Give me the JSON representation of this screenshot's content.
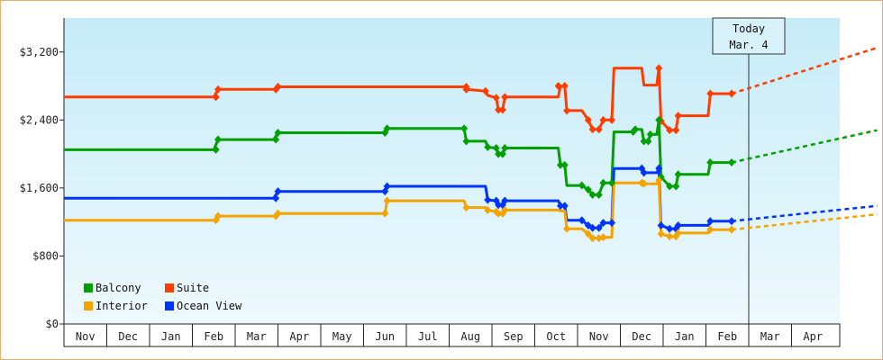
{
  "chart_data": {
    "type": "line",
    "y_axis": {
      "ylim": [
        0,
        3200
      ],
      "ticks": [
        {
          "value": 0,
          "label": "$0"
        },
        {
          "value": 800,
          "label": "$800"
        },
        {
          "value": 1600,
          "label": "$1,600"
        },
        {
          "value": 2400,
          "label": "$2,400"
        },
        {
          "value": 3200,
          "label": "$3,200"
        }
      ]
    },
    "x_axis": {
      "months": [
        "Nov",
        "Dec",
        "Jan",
        "Feb",
        "Mar",
        "Apr",
        "May",
        "Jun",
        "Jul",
        "Aug",
        "Sep",
        "Oct",
        "Nov",
        "Dec",
        "Jan",
        "Feb",
        "Mar",
        "Apr"
      ]
    },
    "today": {
      "line1": "Today",
      "line2": "Mar. 4",
      "x": 16.0
    },
    "grid": false,
    "legend": {
      "position": "bottom-left"
    },
    "series": [
      {
        "name": "Suite",
        "color": "#ff3d00",
        "values": [
          [
            0.0,
            2670
          ],
          [
            3.5,
            2670
          ],
          [
            3.6,
            2760
          ],
          [
            4.9,
            2760
          ],
          [
            5.0,
            2790
          ],
          [
            9.35,
            2790
          ],
          [
            9.4,
            2760
          ],
          [
            9.85,
            2740
          ],
          [
            9.9,
            2690
          ],
          [
            10.1,
            2660
          ],
          [
            10.15,
            2520
          ],
          [
            10.25,
            2520
          ],
          [
            10.3,
            2670
          ],
          [
            11.55,
            2670
          ],
          [
            11.6,
            2800
          ],
          [
            11.7,
            2800
          ],
          [
            11.75,
            2510
          ],
          [
            12.1,
            2510
          ],
          [
            12.25,
            2400
          ],
          [
            12.35,
            2290
          ],
          [
            12.5,
            2290
          ],
          [
            12.6,
            2400
          ],
          [
            12.8,
            2400
          ],
          [
            12.85,
            3010
          ],
          [
            13.5,
            3010
          ],
          [
            13.55,
            2810
          ],
          [
            13.85,
            2810
          ],
          [
            13.9,
            3010
          ],
          [
            13.95,
            2390
          ],
          [
            14.15,
            2280
          ],
          [
            14.3,
            2280
          ],
          [
            14.35,
            2450
          ],
          [
            15.05,
            2450
          ],
          [
            15.1,
            2710
          ],
          [
            15.6,
            2710
          ]
        ]
      },
      {
        "name": "Balcony",
        "color": "#00a000",
        "values": [
          [
            0.0,
            2050
          ],
          [
            3.5,
            2050
          ],
          [
            3.6,
            2170
          ],
          [
            4.9,
            2170
          ],
          [
            5.0,
            2250
          ],
          [
            7.5,
            2250
          ],
          [
            7.55,
            2300
          ],
          [
            9.35,
            2300
          ],
          [
            9.4,
            2150
          ],
          [
            9.85,
            2150
          ],
          [
            9.9,
            2080
          ],
          [
            10.1,
            2070
          ],
          [
            10.15,
            2000
          ],
          [
            10.25,
            2000
          ],
          [
            10.3,
            2070
          ],
          [
            11.55,
            2070
          ],
          [
            11.6,
            1870
          ],
          [
            11.7,
            1870
          ],
          [
            11.75,
            1630
          ],
          [
            12.1,
            1630
          ],
          [
            12.25,
            1580
          ],
          [
            12.35,
            1520
          ],
          [
            12.5,
            1520
          ],
          [
            12.6,
            1660
          ],
          [
            12.8,
            1660
          ],
          [
            12.85,
            2260
          ],
          [
            13.3,
            2260
          ],
          [
            13.35,
            2290
          ],
          [
            13.5,
            2290
          ],
          [
            13.55,
            2150
          ],
          [
            13.65,
            2150
          ],
          [
            13.7,
            2230
          ],
          [
            13.85,
            2230
          ],
          [
            13.9,
            2400
          ],
          [
            13.95,
            1730
          ],
          [
            14.15,
            1620
          ],
          [
            14.3,
            1620
          ],
          [
            14.35,
            1760
          ],
          [
            15.05,
            1760
          ],
          [
            15.1,
            1900
          ],
          [
            15.6,
            1900
          ]
        ]
      },
      {
        "name": "Ocean View",
        "color": "#0033ff",
        "values": [
          [
            0.0,
            1480
          ],
          [
            4.9,
            1480
          ],
          [
            5.0,
            1560
          ],
          [
            7.5,
            1560
          ],
          [
            7.55,
            1620
          ],
          [
            9.85,
            1620
          ],
          [
            9.9,
            1460
          ],
          [
            10.1,
            1450
          ],
          [
            10.15,
            1400
          ],
          [
            10.25,
            1400
          ],
          [
            10.3,
            1450
          ],
          [
            11.55,
            1450
          ],
          [
            11.6,
            1390
          ],
          [
            11.7,
            1390
          ],
          [
            11.75,
            1220
          ],
          [
            12.1,
            1220
          ],
          [
            12.25,
            1160
          ],
          [
            12.35,
            1130
          ],
          [
            12.5,
            1130
          ],
          [
            12.6,
            1190
          ],
          [
            12.8,
            1190
          ],
          [
            12.85,
            1830
          ],
          [
            13.5,
            1830
          ],
          [
            13.55,
            1780
          ],
          [
            13.85,
            1780
          ],
          [
            13.9,
            1830
          ],
          [
            13.95,
            1160
          ],
          [
            14.15,
            1120
          ],
          [
            14.3,
            1120
          ],
          [
            14.35,
            1160
          ],
          [
            15.05,
            1160
          ],
          [
            15.1,
            1210
          ],
          [
            15.6,
            1210
          ]
        ]
      },
      {
        "name": "Interior",
        "color": "#f5a300",
        "values": [
          [
            0.0,
            1220
          ],
          [
            3.5,
            1220
          ],
          [
            3.6,
            1270
          ],
          [
            4.9,
            1270
          ],
          [
            5.0,
            1300
          ],
          [
            7.5,
            1300
          ],
          [
            7.55,
            1450
          ],
          [
            9.35,
            1450
          ],
          [
            9.4,
            1370
          ],
          [
            9.85,
            1370
          ],
          [
            9.9,
            1340
          ],
          [
            10.1,
            1320
          ],
          [
            10.15,
            1300
          ],
          [
            10.25,
            1300
          ],
          [
            10.3,
            1340
          ],
          [
            11.55,
            1340
          ],
          [
            11.6,
            1330
          ],
          [
            11.7,
            1330
          ],
          [
            11.75,
            1120
          ],
          [
            12.1,
            1120
          ],
          [
            12.25,
            1060
          ],
          [
            12.35,
            1010
          ],
          [
            12.5,
            1010
          ],
          [
            12.6,
            1020
          ],
          [
            12.8,
            1020
          ],
          [
            12.85,
            1660
          ],
          [
            13.5,
            1660
          ],
          [
            13.55,
            1650
          ],
          [
            13.85,
            1650
          ],
          [
            13.9,
            1690
          ],
          [
            13.95,
            1060
          ],
          [
            14.15,
            1030
          ],
          [
            14.3,
            1030
          ],
          [
            14.35,
            1070
          ],
          [
            15.05,
            1070
          ],
          [
            15.1,
            1110
          ],
          [
            15.6,
            1110
          ]
        ]
      }
    ],
    "markers": {
      "Suite": [
        [
          3.55,
          2670
        ],
        [
          3.6,
          2760
        ],
        [
          4.95,
          2760
        ],
        [
          5.0,
          2790
        ],
        [
          9.4,
          2790
        ],
        [
          9.4,
          2760
        ],
        [
          9.85,
          2740
        ],
        [
          10.1,
          2660
        ],
        [
          10.15,
          2520
        ],
        [
          10.25,
          2520
        ],
        [
          10.3,
          2670
        ],
        [
          11.55,
          2800
        ],
        [
          11.7,
          2800
        ],
        [
          11.75,
          2510
        ],
        [
          12.25,
          2400
        ],
        [
          12.35,
          2290
        ],
        [
          12.5,
          2290
        ],
        [
          12.6,
          2400
        ],
        [
          12.8,
          2400
        ],
        [
          13.9,
          3010
        ],
        [
          13.95,
          2390
        ],
        [
          14.15,
          2280
        ],
        [
          14.3,
          2280
        ],
        [
          14.35,
          2450
        ],
        [
          15.1,
          2710
        ],
        [
          15.6,
          2710
        ]
      ],
      "Balcony": [
        [
          3.55,
          2050
        ],
        [
          3.6,
          2170
        ],
        [
          4.95,
          2170
        ],
        [
          5.0,
          2250
        ],
        [
          7.5,
          2250
        ],
        [
          7.55,
          2300
        ],
        [
          9.35,
          2300
        ],
        [
          9.4,
          2150
        ],
        [
          9.9,
          2080
        ],
        [
          10.1,
          2070
        ],
        [
          10.15,
          2000
        ],
        [
          10.25,
          2000
        ],
        [
          10.3,
          2070
        ],
        [
          11.6,
          1870
        ],
        [
          11.7,
          1870
        ],
        [
          12.1,
          1630
        ],
        [
          12.25,
          1580
        ],
        [
          12.35,
          1520
        ],
        [
          12.5,
          1520
        ],
        [
          12.6,
          1660
        ],
        [
          12.8,
          1660
        ],
        [
          13.3,
          2260
        ],
        [
          13.35,
          2290
        ],
        [
          13.55,
          2150
        ],
        [
          13.65,
          2150
        ],
        [
          13.7,
          2230
        ],
        [
          13.9,
          2400
        ],
        [
          13.95,
          1730
        ],
        [
          14.15,
          1620
        ],
        [
          14.3,
          1620
        ],
        [
          14.35,
          1760
        ],
        [
          15.1,
          1900
        ],
        [
          15.6,
          1900
        ]
      ],
      "Ocean View": [
        [
          4.95,
          1480
        ],
        [
          5.0,
          1560
        ],
        [
          7.5,
          1560
        ],
        [
          7.55,
          1620
        ],
        [
          9.9,
          1460
        ],
        [
          10.1,
          1450
        ],
        [
          10.15,
          1400
        ],
        [
          10.25,
          1400
        ],
        [
          10.3,
          1450
        ],
        [
          11.6,
          1390
        ],
        [
          11.7,
          1390
        ],
        [
          12.1,
          1220
        ],
        [
          12.25,
          1160
        ],
        [
          12.35,
          1130
        ],
        [
          12.5,
          1130
        ],
        [
          12.6,
          1190
        ],
        [
          12.8,
          1190
        ],
        [
          13.5,
          1830
        ],
        [
          13.55,
          1780
        ],
        [
          13.9,
          1830
        ],
        [
          13.95,
          1160
        ],
        [
          14.15,
          1120
        ],
        [
          14.3,
          1120
        ],
        [
          14.35,
          1160
        ],
        [
          15.1,
          1210
        ],
        [
          15.6,
          1210
        ]
      ],
      "Interior": [
        [
          3.55,
          1220
        ],
        [
          3.6,
          1270
        ],
        [
          4.95,
          1270
        ],
        [
          5.0,
          1300
        ],
        [
          7.5,
          1300
        ],
        [
          7.55,
          1450
        ],
        [
          9.4,
          1370
        ],
        [
          9.9,
          1340
        ],
        [
          10.1,
          1320
        ],
        [
          10.15,
          1300
        ],
        [
          10.25,
          1300
        ],
        [
          10.3,
          1340
        ],
        [
          11.75,
          1120
        ],
        [
          12.25,
          1060
        ],
        [
          12.35,
          1010
        ],
        [
          12.5,
          1010
        ],
        [
          12.6,
          1020
        ],
        [
          13.5,
          1660
        ],
        [
          13.55,
          1650
        ],
        [
          13.9,
          1690
        ],
        [
          13.95,
          1060
        ],
        [
          14.15,
          1030
        ],
        [
          14.3,
          1030
        ],
        [
          14.35,
          1070
        ],
        [
          15.1,
          1110
        ],
        [
          15.6,
          1110
        ]
      ]
    },
    "projections": [
      {
        "name": "Suite",
        "from": [
          15.6,
          2710
        ],
        "to": [
          19.0,
          3250
        ]
      },
      {
        "name": "Balcony",
        "from": [
          15.6,
          1900
        ],
        "to": [
          19.0,
          2280
        ]
      },
      {
        "name": "Ocean View",
        "from": [
          15.6,
          1210
        ],
        "to": [
          19.0,
          1390
        ]
      },
      {
        "name": "Interior",
        "from": [
          15.6,
          1110
        ],
        "to": [
          19.0,
          1290
        ]
      }
    ],
    "legend_entries": [
      {
        "name": "Balcony",
        "color": "#00a000"
      },
      {
        "name": "Suite",
        "color": "#ff3d00"
      },
      {
        "name": "Interior",
        "color": "#f5a300"
      },
      {
        "name": "Ocean View",
        "color": "#0033ff"
      }
    ]
  }
}
